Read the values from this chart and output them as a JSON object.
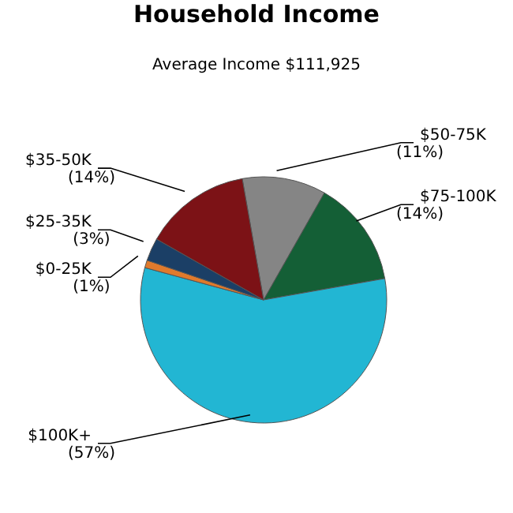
{
  "chart_data": {
    "type": "pie",
    "title": "Household Income",
    "subtitle": "Average Income  $111,925",
    "categories": [
      "$50-75K",
      "$75-100K",
      "$100K+",
      "$0-25K",
      "$25-35K",
      "$35-50K"
    ],
    "values": [
      11,
      14,
      57,
      1,
      3,
      14
    ],
    "value_labels": [
      "(11%)",
      "(14%)",
      "(57%)",
      "(1%)",
      "(3%)",
      "(14%)"
    ],
    "colors": [
      "#858585",
      "#145f36",
      "#22b6d3",
      "#e07a2c",
      "#1b3f66",
      "#7c1216"
    ]
  }
}
